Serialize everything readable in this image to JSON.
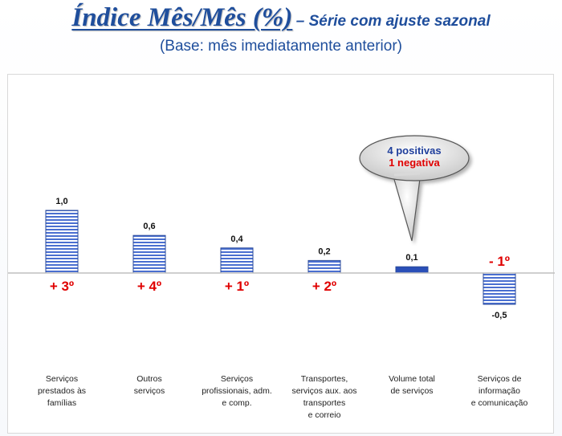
{
  "header": {
    "title": "Índice Mês/Mês (%)",
    "subtitle": "– Série com ajuste sazonal",
    "base_note": "(Base: mês imediatamente anterior)"
  },
  "callout": {
    "line1": "4 positivas",
    "line2": "1 negativa",
    "line1_color": "#1f3f9c",
    "line2_color": "#e00000"
  },
  "colors": {
    "bar_stripe": "#4a6fd0",
    "bar_highlight": "#2a4fb8",
    "rank_text": "#e00000"
  },
  "chart_data": {
    "type": "bar",
    "categories": [
      "Serviços\nprestados às\nfamílias",
      "Outros\nserviços",
      "Serviços\nprofissionais, adm.\ne comp.",
      "Transportes,\nserviços aux. aos\ntransportes\ne correio",
      "Volume total\nde serviços",
      "Serviços de\ninformação\ne comunicação"
    ],
    "values": [
      1.0,
      0.6,
      0.4,
      0.2,
      0.1,
      -0.5
    ],
    "value_labels": [
      "1,0",
      "0,6",
      "0,4",
      "0,2",
      "0,1",
      "-0,5"
    ],
    "rank_labels": [
      "+ 3º",
      "+ 4º",
      "+ 1º",
      "+ 2º",
      "",
      "- 1º"
    ],
    "highlight_index": 4,
    "ylim": [
      -0.5,
      1.0
    ]
  }
}
